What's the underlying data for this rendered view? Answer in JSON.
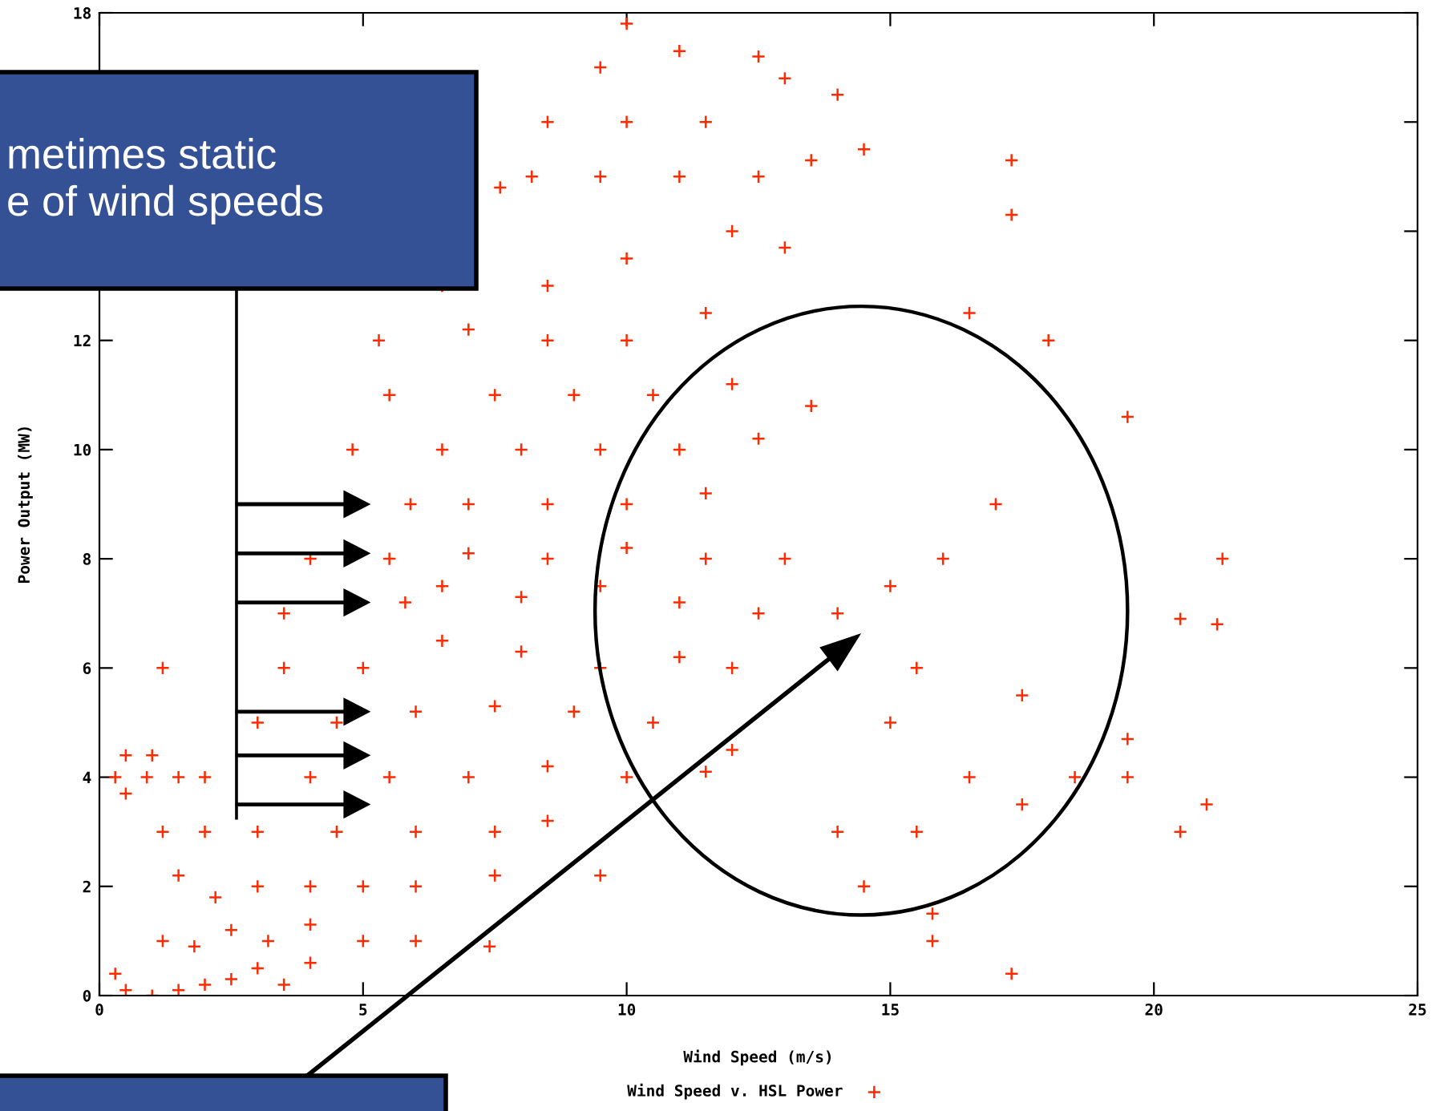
{
  "chart_data": {
    "type": "scatter",
    "xlabel": "Wind Speed (m/s)",
    "ylabel": "Power Output (MW)",
    "annotations": [
      "metimes static\ne of wind speeds"
    ],
    "xlim": [
      0,
      25
    ],
    "ylim": [
      0,
      18
    ],
    "xticks": [
      0,
      5,
      10,
      15,
      20,
      25
    ],
    "yticks": [
      0,
      2,
      4,
      6,
      8,
      10,
      12,
      {
        "value": 14,
        "label": null
      },
      {
        "value": 16,
        "label": null
      },
      18
    ],
    "grid": false,
    "legend": "bottom",
    "marker": "cross",
    "series": [
      {
        "name": "Wind Speed v. HSL Power",
        "color": "#ff2a00",
        "x": [
          0.3,
          0.5,
          1,
          1.5,
          2,
          2.5,
          3,
          3.5,
          4,
          1.2,
          1.8,
          2.5,
          3.2,
          4,
          5,
          6,
          7.4,
          0.5,
          1,
          0.3,
          0.5,
          0.9,
          1.5,
          2,
          1.2,
          2,
          1.5,
          2.2,
          3,
          4,
          5,
          6,
          7.5,
          9.5,
          3,
          4.5,
          6,
          7.5,
          8.5,
          4,
          5.5,
          7,
          8.5,
          10,
          11.5,
          12,
          3,
          4.5,
          6,
          7.5,
          9,
          10.5,
          3.5,
          1.2,
          5,
          6.5,
          8,
          9.5,
          11,
          12,
          3.5,
          5.8,
          6.5,
          8,
          9.5,
          11,
          12.5,
          4,
          5.5,
          7,
          8.5,
          10,
          11.5,
          13,
          5.9,
          7,
          8.5,
          10,
          11.5,
          4.8,
          6.5,
          8,
          9.5,
          11,
          12.5,
          5.5,
          7.5,
          9,
          10.5,
          12,
          13.5,
          5.3,
          7,
          8.5,
          10,
          11.5,
          6.5,
          8.5,
          10,
          12,
          13,
          7.6,
          8.2,
          9.5,
          11,
          12.5,
          13.5,
          8.5,
          10,
          11.5,
          13,
          9.5,
          11,
          12.5,
          10,
          14,
          15,
          16,
          17,
          15.5,
          17.5,
          15,
          16.5,
          14,
          15.5,
          17.5,
          14.5,
          15.8,
          17.3,
          15.8,
          18.5,
          19.5,
          20.5,
          21,
          19.5,
          20.5,
          21.2,
          21.3,
          19.5,
          17.3,
          16.5,
          18,
          14,
          14.5,
          17.3
        ],
        "values": [
          0.4,
          0.1,
          0,
          0.1,
          0.2,
          0.3,
          0.5,
          0.2,
          0.6,
          1,
          0.9,
          1.2,
          1,
          1.3,
          1,
          1,
          0.9,
          4.4,
          4.4,
          4,
          3.7,
          4,
          4,
          4,
          3,
          3,
          2.2,
          1.8,
          2,
          2,
          2,
          2,
          2.2,
          2.2,
          3,
          3,
          3,
          3,
          3.2,
          4,
          4,
          4,
          4.2,
          4,
          4.1,
          4.5,
          5,
          5,
          5.2,
          5.3,
          5.2,
          5,
          6,
          6,
          6,
          6.5,
          6.3,
          6,
          6.2,
          6,
          7,
          7.2,
          7.5,
          7.3,
          7.5,
          7.2,
          7,
          8,
          8,
          8.1,
          8,
          8.2,
          8,
          8,
          9,
          9,
          9,
          9,
          9.2,
          10,
          10,
          10,
          10,
          10,
          10.2,
          11,
          11,
          11,
          11,
          11.2,
          10.8,
          12,
          12.2,
          12,
          12,
          12.5,
          13,
          13,
          13.5,
          14,
          13.7,
          14.8,
          15,
          15,
          15,
          15,
          15.3,
          16,
          16,
          16,
          16.8,
          17,
          17.3,
          17.2,
          17.8,
          7,
          7.5,
          8,
          9,
          6,
          5.5,
          5,
          4,
          3,
          3,
          3.5,
          2,
          1,
          0.4,
          1.5,
          4,
          4,
          3,
          3.5,
          4.7,
          6.9,
          6.8,
          8,
          10.6,
          14.3,
          12.5,
          12,
          16.5,
          15.5,
          15.3
        ]
      }
    ]
  }
}
